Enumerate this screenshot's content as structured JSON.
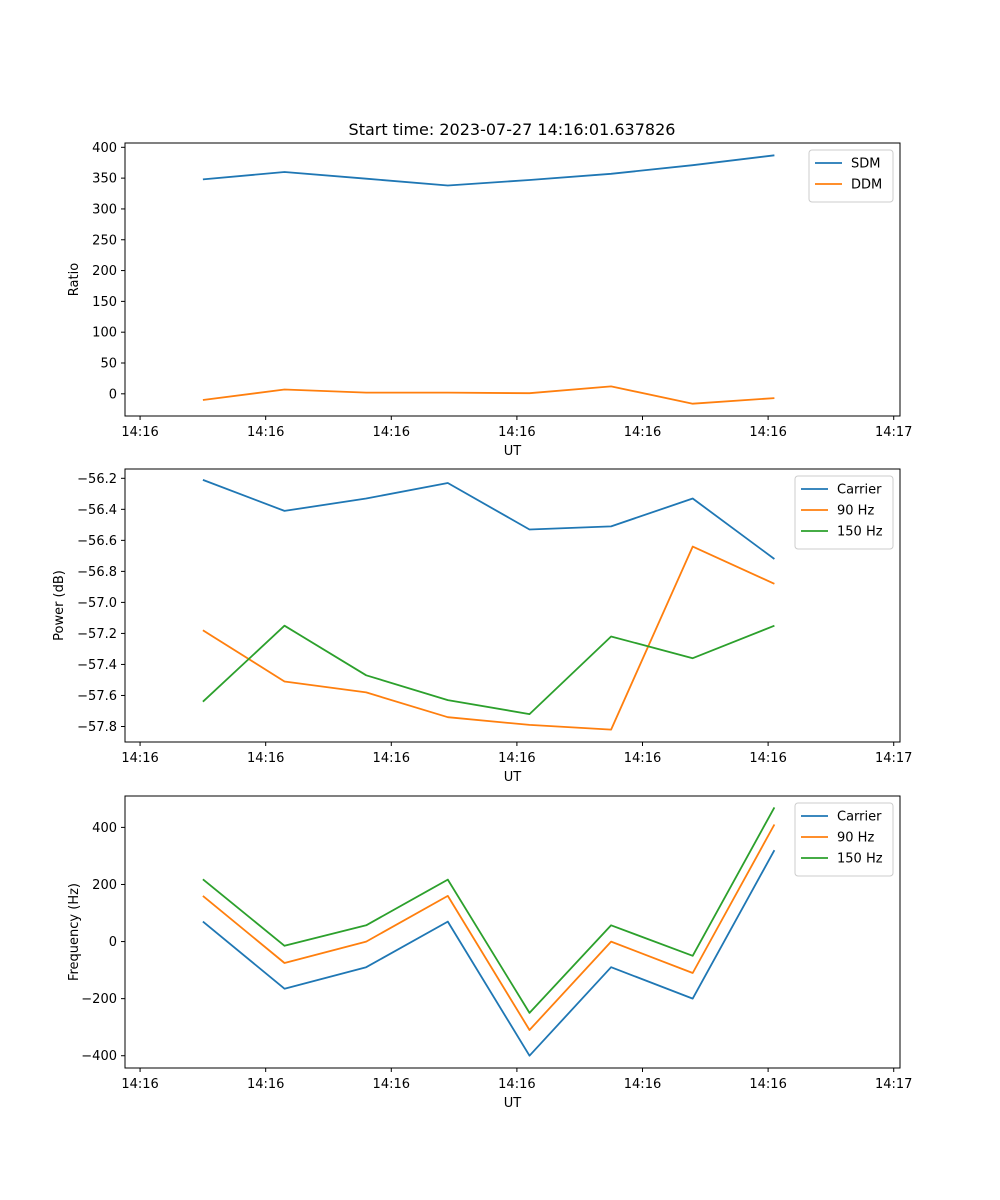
{
  "chart_data": [
    {
      "type": "line",
      "title": "Start time: 2023-07-27 14:16:01.637826",
      "xlabel": "UT",
      "ylabel": "Ratio",
      "x_tick_labels": [
        "14:16",
        "14:16",
        "14:16",
        "14:16",
        "14:16",
        "14:16",
        "14:17"
      ],
      "x": [
        0.5,
        1.15,
        1.8,
        2.45,
        3.1,
        3.75,
        4.4,
        5.05
      ],
      "xlim": [
        -0.12,
        6.05
      ],
      "ylim": [
        -36,
        407
      ],
      "y_ticks": [
        0,
        50,
        100,
        150,
        200,
        250,
        300,
        350,
        400
      ],
      "legend_position": "upper right",
      "series": [
        {
          "name": "SDM",
          "color": "#1f77b4",
          "values": [
            348,
            360,
            349,
            338,
            347,
            357,
            371,
            387
          ]
        },
        {
          "name": "DDM",
          "color": "#ff7f0e",
          "values": [
            -10,
            7,
            2,
            2,
            1,
            12,
            -16,
            -7
          ]
        }
      ]
    },
    {
      "type": "line",
      "title": "",
      "xlabel": "UT",
      "ylabel": "Power (dB)",
      "x_tick_labels": [
        "14:16",
        "14:16",
        "14:16",
        "14:16",
        "14:16",
        "14:16",
        "14:17"
      ],
      "x": [
        0.5,
        1.15,
        1.8,
        2.45,
        3.1,
        3.75,
        4.4,
        5.05
      ],
      "xlim": [
        -0.12,
        6.05
      ],
      "ylim": [
        -57.9,
        -56.14
      ],
      "y_ticks": [
        -57.8,
        -57.6,
        -57.4,
        -57.2,
        -57.0,
        -56.8,
        -56.6,
        -56.4,
        -56.2
      ],
      "legend_position": "upper right",
      "series": [
        {
          "name": "Carrier",
          "color": "#1f77b4",
          "values": [
            -56.21,
            -56.41,
            -56.33,
            -56.23,
            -56.53,
            -56.51,
            -56.33,
            -56.72
          ]
        },
        {
          "name": "90 Hz",
          "color": "#ff7f0e",
          "values": [
            -57.18,
            -57.51,
            -57.58,
            -57.74,
            -57.79,
            -57.82,
            -56.64,
            -56.88
          ]
        },
        {
          "name": "150 Hz",
          "color": "#2ca02c",
          "values": [
            -57.64,
            -57.15,
            -57.47,
            -57.63,
            -57.72,
            -57.22,
            -57.36,
            -57.15
          ]
        }
      ]
    },
    {
      "type": "line",
      "title": "",
      "xlabel": "UT",
      "ylabel": "Frequency (Hz)",
      "x_tick_labels": [
        "14:16",
        "14:16",
        "14:16",
        "14:16",
        "14:16",
        "14:16",
        "14:17"
      ],
      "x": [
        0.5,
        1.15,
        1.8,
        2.45,
        3.1,
        3.75,
        4.4,
        5.05
      ],
      "xlim": [
        -0.12,
        6.05
      ],
      "ylim": [
        -443,
        510
      ],
      "y_ticks": [
        -400,
        -200,
        0,
        200,
        400
      ],
      "legend_position": "upper right",
      "series": [
        {
          "name": "Carrier",
          "color": "#1f77b4",
          "values": [
            70,
            -165,
            -90,
            70,
            -400,
            -90,
            -200,
            320
          ]
        },
        {
          "name": "90 Hz",
          "color": "#ff7f0e",
          "values": [
            160,
            -75,
            0,
            160,
            -310,
            0,
            -110,
            410
          ]
        },
        {
          "name": "150 Hz",
          "color": "#2ca02c",
          "values": [
            218,
            -15,
            57,
            217,
            -250,
            57,
            -50,
            470
          ]
        }
      ]
    }
  ]
}
